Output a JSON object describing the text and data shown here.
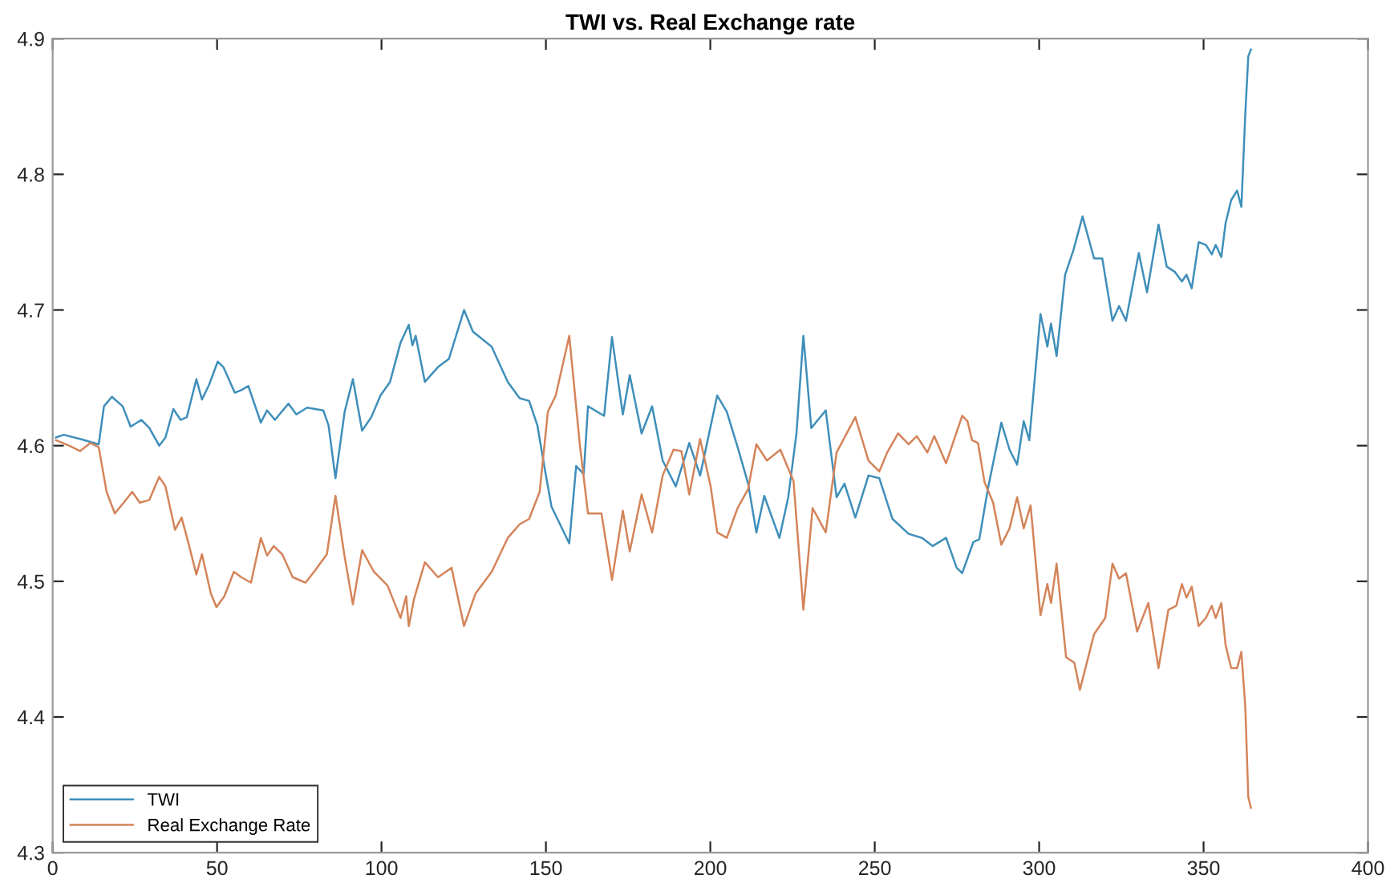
{
  "chart_data": {
    "type": "line",
    "title": "TWI vs. Real Exchange rate",
    "series": [
      {
        "name": "TWI",
        "color": "#3f8fba",
        "x": [
          1,
          3.4,
          8.3,
          14,
          15.6,
          18,
          21.3,
          23.7,
          27,
          29.4,
          32.4,
          34.3,
          36.7,
          38.9,
          40.8,
          43.7,
          45.4,
          47.6,
          50.2,
          51.9,
          55.4,
          57.4,
          59.5,
          63.3,
          65.2,
          67.6,
          71.7,
          74.1,
          77.4,
          82.3,
          83.9,
          86,
          88.8,
          91.3,
          94.1,
          96.9,
          99.7,
          102.6,
          105.8,
          108.3,
          109.4,
          110.4,
          113.2,
          117.2,
          120.5,
          125.1,
          127.8,
          133.5,
          138.4,
          142,
          144.9,
          147.4,
          149.5,
          151.7,
          157.1,
          159.2,
          161.5,
          162.8,
          167.7,
          170.1,
          173.4,
          175.5,
          179.1,
          182.3,
          185.5,
          189.5,
          193.6,
          196.9,
          202.1,
          205,
          208.3,
          211.5,
          214,
          216.4,
          221,
          223.7,
          226.2,
          228.3,
          230.7,
          235.1,
          238.4,
          240.8,
          244.1,
          248.1,
          251.4,
          255.4,
          260.3,
          264.4,
          267.6,
          271.7,
          274.9,
          276.6,
          280,
          281.8,
          284.4,
          288.5,
          291,
          293.3,
          295.3,
          297,
          300.4,
          302.5,
          303.6,
          305.3,
          307.9,
          310.4,
          313.2,
          316.7,
          319.2,
          322.3,
          324.3,
          326.4,
          330.3,
          332.8,
          336.3,
          338.8,
          341.3,
          343.4,
          344.8,
          346.4,
          348.5,
          350.7,
          352.5,
          353.7,
          355.4,
          356.7,
          358.4,
          360.2,
          361.5,
          362.7,
          363.6,
          364.4
        ],
        "values": [
          4.606,
          4.608,
          4.605,
          4.601,
          4.629,
          4.636,
          4.629,
          4.614,
          4.619,
          4.613,
          4.6,
          4.606,
          4.627,
          4.619,
          4.621,
          4.649,
          4.634,
          4.645,
          4.662,
          4.658,
          4.639,
          4.641,
          4.644,
          4.617,
          4.626,
          4.619,
          4.631,
          4.623,
          4.628,
          4.626,
          4.615,
          4.576,
          4.625,
          4.649,
          4.611,
          4.621,
          4.637,
          4.647,
          4.676,
          4.689,
          4.674,
          4.681,
          4.647,
          4.658,
          4.664,
          4.7,
          4.684,
          4.673,
          4.647,
          4.635,
          4.633,
          4.615,
          4.585,
          4.555,
          4.528,
          4.585,
          4.579,
          4.629,
          4.622,
          4.68,
          4.623,
          4.652,
          4.609,
          4.629,
          4.589,
          4.57,
          4.602,
          4.578,
          4.637,
          4.625,
          4.599,
          4.572,
          4.536,
          4.563,
          4.532,
          4.562,
          4.609,
          4.681,
          4.613,
          4.626,
          4.562,
          4.572,
          4.547,
          4.578,
          4.576,
          4.546,
          4.535,
          4.532,
          4.526,
          4.532,
          4.51,
          4.506,
          4.529,
          4.531,
          4.568,
          4.617,
          4.597,
          4.586,
          4.618,
          4.604,
          4.697,
          4.673,
          4.69,
          4.666,
          4.726,
          4.744,
          4.769,
          4.738,
          4.738,
          4.692,
          4.703,
          4.692,
          4.742,
          4.713,
          4.763,
          4.732,
          4.728,
          4.721,
          4.726,
          4.716,
          4.75,
          4.748,
          4.741,
          4.748,
          4.739,
          4.764,
          4.781,
          4.788,
          4.776,
          4.845,
          4.887,
          4.892
        ]
      },
      {
        "name": "Real Exchange Rate",
        "color": "#d4845a",
        "x": [
          1,
          5,
          8.3,
          11.5,
          14,
          16.4,
          18.9,
          21.6,
          24.2,
          26.5,
          29.4,
          32.4,
          34.3,
          37.2,
          39.2,
          41.1,
          43.7,
          45.4,
          48.1,
          49.8,
          52.2,
          55.1,
          57.4,
          60.3,
          63.3,
          65.2,
          67.2,
          69.8,
          73,
          76.9,
          79.8,
          83.4,
          86,
          88.8,
          91.3,
          94.1,
          97.7,
          101.8,
          105.8,
          107.5,
          108.3,
          109.9,
          113.2,
          117.2,
          121.3,
          125.1,
          128.6,
          133.5,
          138.4,
          142,
          144.9,
          148.1,
          150.6,
          153,
          157.1,
          160.3,
          162.8,
          166.9,
          170.1,
          173.4,
          175.5,
          179.1,
          182.3,
          185.5,
          188.8,
          191.2,
          193.6,
          196.9,
          200.1,
          202.1,
          205,
          208.3,
          211.5,
          214,
          217.2,
          221.3,
          225.3,
          228.3,
          231.1,
          235.1,
          238.4,
          244.1,
          248.1,
          251.4,
          253.8,
          257.1,
          260.3,
          262.8,
          266,
          268.1,
          271.7,
          276.6,
          278.2,
          279.6,
          281.4,
          283.4,
          286,
          288.5,
          291,
          293.3,
          295.3,
          297.4,
          300.4,
          302.5,
          303.6,
          305.3,
          308.2,
          310.7,
          312.4,
          316.7,
          320.1,
          322.3,
          324.3,
          326.4,
          329.8,
          333.2,
          336.3,
          339.3,
          341.7,
          343.4,
          344.8,
          346.4,
          348.5,
          350.7,
          352.5,
          353.7,
          355.4,
          356.7,
          358.4,
          360.2,
          361.5,
          362.7,
          363.6,
          364.4
        ],
        "values": [
          4.604,
          4.6,
          4.596,
          4.602,
          4.599,
          4.566,
          4.55,
          4.558,
          4.566,
          4.558,
          4.56,
          4.577,
          4.57,
          4.538,
          4.547,
          4.53,
          4.505,
          4.52,
          4.491,
          4.481,
          4.489,
          4.507,
          4.503,
          4.499,
          4.532,
          4.519,
          4.526,
          4.52,
          4.503,
          4.499,
          4.508,
          4.52,
          4.563,
          4.518,
          4.483,
          4.523,
          4.507,
          4.497,
          4.473,
          4.489,
          4.467,
          4.487,
          4.514,
          4.503,
          4.51,
          4.467,
          4.491,
          4.507,
          4.532,
          4.542,
          4.546,
          4.566,
          4.625,
          4.637,
          4.681,
          4.601,
          4.55,
          4.55,
          4.501,
          4.552,
          4.522,
          4.564,
          4.536,
          4.578,
          4.597,
          4.596,
          4.564,
          4.605,
          4.57,
          4.536,
          4.532,
          4.554,
          4.568,
          4.601,
          4.589,
          4.597,
          4.574,
          4.479,
          4.554,
          4.536,
          4.595,
          4.621,
          4.589,
          4.581,
          4.595,
          4.609,
          4.601,
          4.607,
          4.595,
          4.607,
          4.587,
          4.622,
          4.618,
          4.604,
          4.602,
          4.573,
          4.558,
          4.527,
          4.539,
          4.562,
          4.539,
          4.556,
          4.475,
          4.498,
          4.484,
          4.513,
          4.444,
          4.44,
          4.42,
          4.461,
          4.473,
          4.513,
          4.502,
          4.506,
          4.463,
          4.484,
          4.436,
          4.479,
          4.482,
          4.498,
          4.488,
          4.496,
          4.467,
          4.473,
          4.482,
          4.473,
          4.484,
          4.453,
          4.436,
          4.436,
          4.448,
          4.407,
          4.341,
          4.333
        ]
      }
    ],
    "xlim": [
      0,
      400
    ],
    "xticks": [
      0,
      50,
      100,
      150,
      200,
      250,
      300,
      350,
      400
    ],
    "ylim": [
      4.3,
      4.9
    ],
    "yticks": [
      {
        "value": 4.3,
        "label": "4.3"
      },
      {
        "value": 4.4,
        "label": "4.4"
      },
      {
        "value": 4.5,
        "label": "4.5"
      },
      {
        "value": 4.6,
        "label": "4.6"
      },
      {
        "value": 4.7,
        "label": "4.7"
      },
      {
        "value": 4.8,
        "label": "4.8"
      },
      {
        "value": 4.9,
        "label": "4.9"
      }
    ],
    "grid": false,
    "legend": "bottom left",
    "line_style": "solid",
    "marker": "none"
  }
}
